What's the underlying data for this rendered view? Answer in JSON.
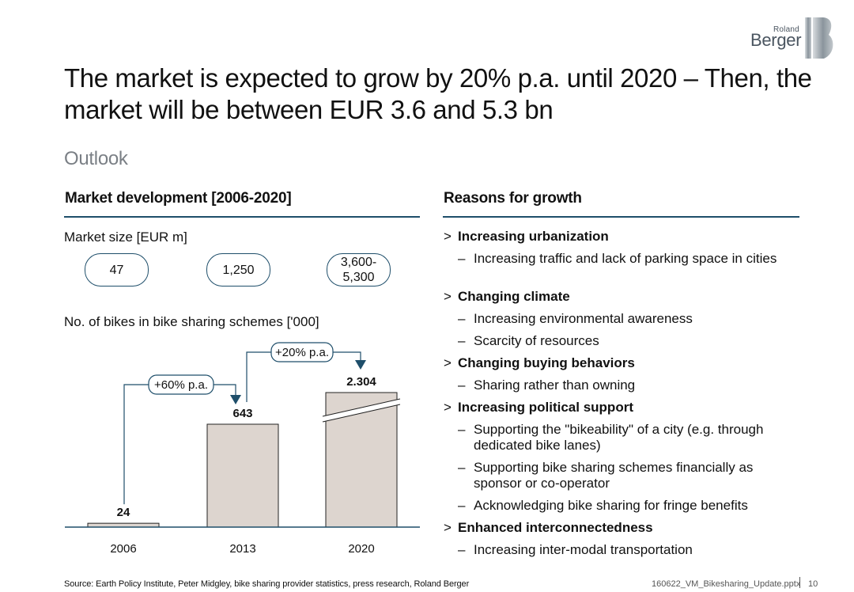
{
  "logo": {
    "line1": "Roland",
    "line2": "Berger",
    "mark": "roland-berger-logo"
  },
  "title": "The market is expected to grow by 20% p.a. until 2020 – Then, the market will be between EUR 3.6 and 5.3 bn",
  "subtitle": "Outlook",
  "left": {
    "header": "Market development [2006-2020]",
    "market_size_label": "Market size [EUR m]",
    "market_sizes": [
      {
        "year": "2006",
        "value": "47"
      },
      {
        "year": "2013",
        "value": "1,250"
      },
      {
        "year": "2020",
        "value": "3,600-5,300",
        "line1": "3,600-",
        "line2": "5,300"
      }
    ],
    "bikes_label": "No. of bikes in bike sharing schemes ['000]",
    "growth": [
      {
        "label": "+60% p.a."
      },
      {
        "label": "+20% p.a."
      }
    ]
  },
  "chart_data": {
    "type": "bar",
    "categories": [
      "2006",
      "2013",
      "2020"
    ],
    "values": [
      24,
      643,
      2304
    ],
    "value_labels": [
      "24",
      "643",
      "2.304"
    ],
    "title": "No. of bikes in bike sharing schemes ['000]",
    "xlabel": "",
    "ylabel": "",
    "axis_break": "2020",
    "annotations": [
      "+60% p.a.",
      "+20% p.a."
    ],
    "grid": false,
    "colors": {
      "bar_fill": "#ddd5cf",
      "bar_stroke": "#222222",
      "accent": "#1e4e6a"
    }
  },
  "right": {
    "header": "Reasons for growth",
    "items": [
      {
        "level": 1,
        "marker": ">",
        "text": "Increasing urbanization"
      },
      {
        "level": 2,
        "marker": "–",
        "text": "Increasing traffic and lack of parking space in cities"
      },
      {
        "level": 1,
        "marker": ">",
        "text": "Changing climate"
      },
      {
        "level": 2,
        "marker": "–",
        "text": "Increasing environmental awareness"
      },
      {
        "level": 2,
        "marker": "–",
        "text": "Scarcity of resources"
      },
      {
        "level": 1,
        "marker": ">",
        "text": "Changing buying behaviors"
      },
      {
        "level": 2,
        "marker": "–",
        "text": "Sharing rather than owning"
      },
      {
        "level": 1,
        "marker": ">",
        "text": "Increasing political support"
      },
      {
        "level": 2,
        "marker": "–",
        "text": "Supporting the \"bikeability\" of a city (e.g. through dedicated bike lanes)"
      },
      {
        "level": 2,
        "marker": "–",
        "text": "Supporting bike sharing schemes financially as sponsor or co-operator"
      },
      {
        "level": 2,
        "marker": "–",
        "text": "Acknowledging bike sharing for fringe benefits"
      },
      {
        "level": 1,
        "marker": ">",
        "text": "Enhanced interconnectedness"
      },
      {
        "level": 2,
        "marker": "–",
        "text": "Increasing inter-modal transportation"
      }
    ]
  },
  "footer": {
    "source": "Source: Earth Policy Institute, Peter Midgley, bike sharing provider statistics, press research, Roland Berger",
    "file": "160622_VM_Bikesharing_Update.pptx",
    "page": "10"
  },
  "colors": {
    "accent": "#1e4e6a",
    "subtitle": "#7a7f85",
    "bar_fill": "#ddd5cf"
  }
}
